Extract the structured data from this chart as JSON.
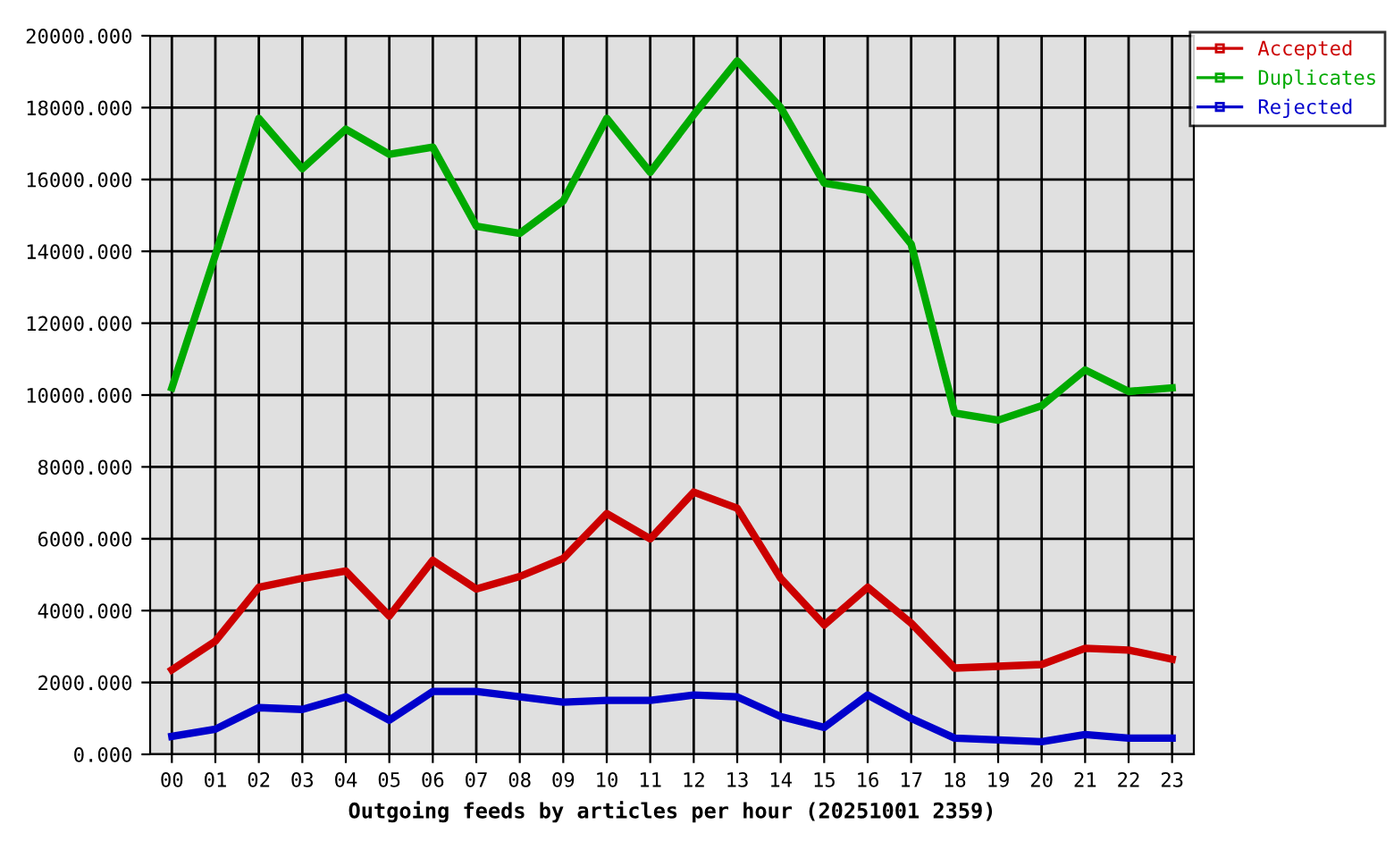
{
  "chart_data": {
    "type": "line",
    "xlabel": "Outgoing feeds by articles per hour (20251001 2359)",
    "categories": [
      "00",
      "01",
      "02",
      "03",
      "04",
      "05",
      "06",
      "07",
      "08",
      "09",
      "10",
      "11",
      "12",
      "13",
      "14",
      "15",
      "16",
      "17",
      "18",
      "19",
      "20",
      "21",
      "22",
      "23"
    ],
    "series": [
      {
        "name": "Accepted",
        "color": "#cc0000",
        "values": [
          2350,
          3150,
          4650,
          4900,
          5100,
          3850,
          5400,
          4600,
          4950,
          5450,
          6700,
          6000,
          7300,
          6850,
          4900,
          3600,
          4650,
          3650,
          2400,
          2450,
          2500,
          2950,
          2900,
          2650
        ]
      },
      {
        "name": "Duplicates",
        "color": "#00aa00",
        "values": [
          10200,
          13900,
          17700,
          16300,
          17400,
          16700,
          16900,
          14700,
          14500,
          15400,
          17700,
          16200,
          17800,
          19300,
          18000,
          15900,
          15700,
          14200,
          9500,
          9300,
          9700,
          10700,
          10100,
          10200
        ]
      },
      {
        "name": "Rejected",
        "color": "#0000cc",
        "values": [
          500,
          700,
          1300,
          1250,
          1600,
          950,
          1750,
          1750,
          1600,
          1450,
          1500,
          1500,
          1650,
          1600,
          1050,
          750,
          1650,
          1000,
          450,
          400,
          350,
          550,
          450,
          450
        ]
      }
    ],
    "ylim": [
      0,
      20000
    ],
    "yticks": [
      {
        "value": 0,
        "label": "0.000"
      },
      {
        "value": 2000,
        "label": "2000.000"
      },
      {
        "value": 4000,
        "label": "4000.000"
      },
      {
        "value": 6000,
        "label": "6000.000"
      },
      {
        "value": 8000,
        "label": "8000.000"
      },
      {
        "value": 10000,
        "label": "10000.000"
      },
      {
        "value": 12000,
        "label": "12000.000"
      },
      {
        "value": 14000,
        "label": "14000.000"
      },
      {
        "value": 16000,
        "label": "16000.000"
      },
      {
        "value": 18000,
        "label": "18000.000"
      },
      {
        "value": 20000,
        "label": "20000.000"
      }
    ],
    "grid": true,
    "legend": "top right",
    "line_style": "solid",
    "marker": "none"
  }
}
